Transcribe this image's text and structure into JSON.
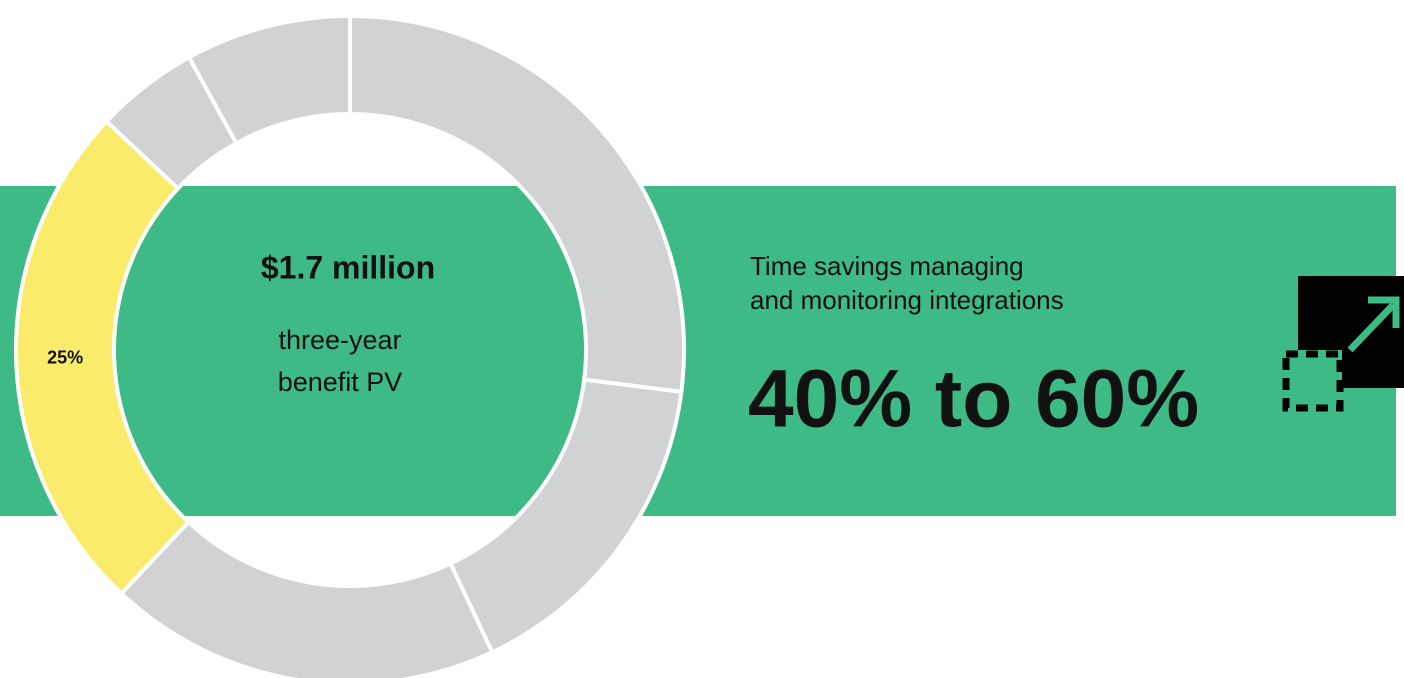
{
  "chart_data": {
    "type": "donut",
    "values": [
      27,
      16,
      19,
      25,
      5,
      8
    ],
    "value_labels": [
      null,
      null,
      null,
      "25%",
      null,
      null
    ],
    "colors": [
      "#d1d2d4",
      "#d1d2d4",
      "#d1d2d4",
      "#fbeb6b",
      "#d1d2d4",
      "#d1d2d4"
    ],
    "center_title": "$1.7 million",
    "center_caption": [
      "three-year",
      "benefit PV"
    ]
  },
  "metric": {
    "caption": [
      "Time savings managing",
      "and monitoring integrations"
    ],
    "value": "40% to 60%"
  }
}
